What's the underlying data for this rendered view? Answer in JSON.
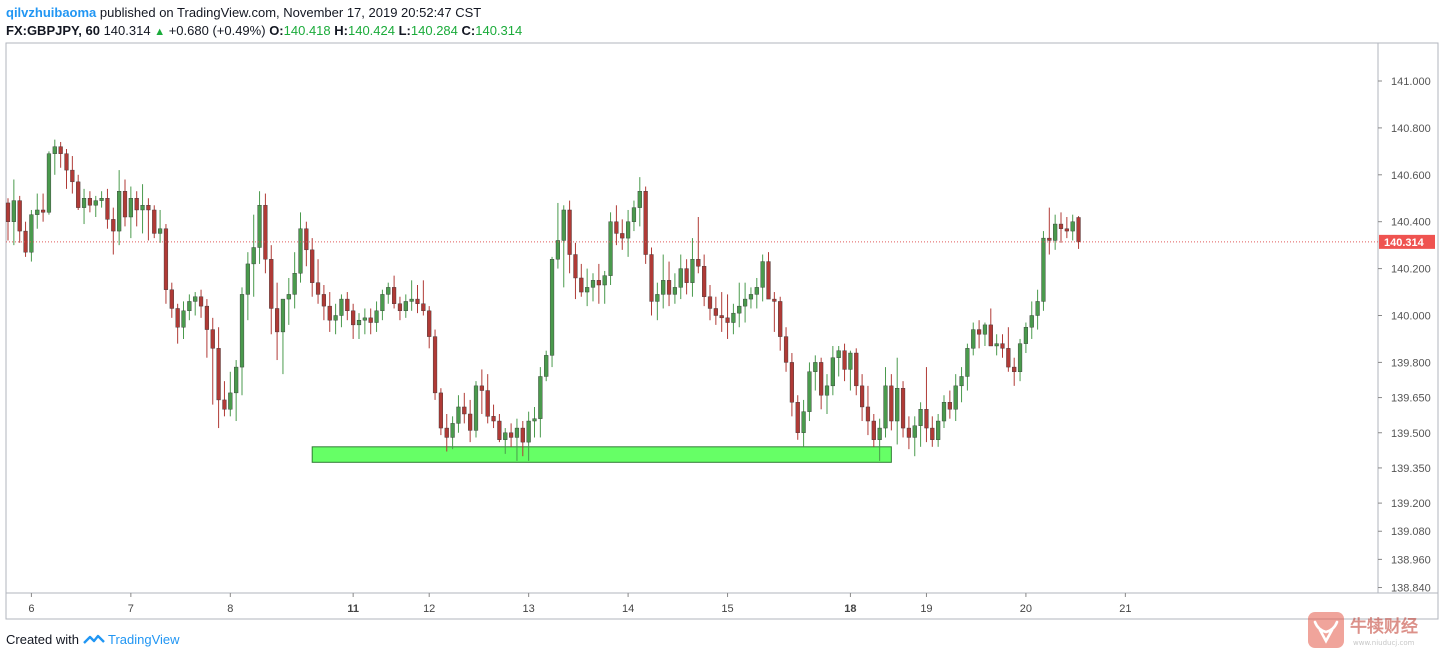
{
  "header": {
    "author": "qilvzhuibaoma",
    "published": "published on TradingView.com, November 17, 2019 20:52:47 CST",
    "symbol": "FX:GBPJPY, 60",
    "last": "140.314",
    "change": "+0.680 (+0.49%)",
    "o_label": "O:",
    "o_value": "140.418",
    "h_label": "H:",
    "h_value": "140.424",
    "l_label": "L:",
    "l_value": "140.284",
    "c_label": "C:",
    "c_value": "140.314"
  },
  "footer": {
    "created_with": "Created with",
    "brand": "TradingView"
  },
  "watermark": {
    "text": "牛犊财经",
    "url": "www.niuducj.com"
  },
  "colors": {
    "up": "#4a9a4d",
    "down": "#b03a36",
    "zone": "#66ff66",
    "price_line": "#e05a5a",
    "price_tag": "#ef5350"
  },
  "chart_data": {
    "type": "candlestick",
    "symbol": "FX:GBPJPY",
    "interval": "60",
    "y_ticks": [
      "141.000",
      "140.800",
      "140.600",
      "140.400",
      "140.200",
      "140.000",
      "139.800",
      "139.650",
      "139.500",
      "139.350",
      "139.200",
      "139.080",
      "138.960",
      "138.840"
    ],
    "x_ticks": [
      {
        "label": "6",
        "i": 4,
        "bold": false
      },
      {
        "label": "7",
        "i": 21,
        "bold": false
      },
      {
        "label": "8",
        "i": 38,
        "bold": false
      },
      {
        "label": "11",
        "i": 59,
        "bold": true
      },
      {
        "label": "12",
        "i": 72,
        "bold": false
      },
      {
        "label": "13",
        "i": 89,
        "bold": false
      },
      {
        "label": "14",
        "i": 106,
        "bold": false
      },
      {
        "label": "15",
        "i": 123,
        "bold": false
      },
      {
        "label": "18",
        "i": 144,
        "bold": true
      },
      {
        "label": "19",
        "i": 157,
        "bold": false
      },
      {
        "label": "20",
        "i": 174,
        "bold": false
      },
      {
        "label": "21",
        "i": 191,
        "bold": false
      }
    ],
    "last_price": 140.314,
    "last_price_label": "140.314",
    "support_zone": {
      "from": 139.374,
      "to": 139.44,
      "start_index": 52,
      "end_index": 151
    },
    "candles": [
      [
        140.48,
        140.5,
        140.32,
        140.4
      ],
      [
        140.4,
        140.58,
        140.3,
        140.49
      ],
      [
        140.49,
        140.51,
        140.31,
        140.36
      ],
      [
        140.36,
        140.4,
        140.25,
        140.27
      ],
      [
        140.27,
        140.45,
        140.23,
        140.43
      ],
      [
        140.43,
        140.52,
        140.37,
        140.45
      ],
      [
        140.45,
        140.52,
        140.4,
        140.44
      ],
      [
        140.44,
        140.7,
        140.43,
        140.69
      ],
      [
        140.69,
        140.75,
        140.6,
        140.72
      ],
      [
        140.72,
        140.74,
        140.63,
        140.69
      ],
      [
        140.69,
        140.71,
        140.54,
        140.62
      ],
      [
        140.62,
        140.68,
        140.52,
        140.57
      ],
      [
        140.57,
        140.6,
        140.45,
        140.46
      ],
      [
        140.46,
        140.54,
        140.39,
        140.5
      ],
      [
        140.5,
        140.53,
        140.44,
        140.47
      ],
      [
        140.47,
        140.51,
        140.42,
        140.49
      ],
      [
        140.49,
        140.53,
        140.46,
        140.5
      ],
      [
        140.5,
        140.54,
        140.37,
        140.41
      ],
      [
        140.41,
        140.46,
        140.26,
        140.36
      ],
      [
        140.36,
        140.62,
        140.3,
        140.53
      ],
      [
        140.53,
        140.58,
        140.38,
        140.42
      ],
      [
        140.42,
        140.55,
        140.33,
        140.5
      ],
      [
        140.5,
        140.53,
        140.38,
        140.45
      ],
      [
        140.45,
        140.56,
        140.35,
        140.47
      ],
      [
        140.47,
        140.5,
        140.32,
        140.45
      ],
      [
        140.45,
        140.47,
        140.33,
        140.35
      ],
      [
        140.35,
        140.45,
        140.31,
        140.37
      ],
      [
        140.37,
        140.39,
        140.05,
        140.11
      ],
      [
        140.11,
        140.14,
        139.99,
        140.03
      ],
      [
        140.03,
        140.05,
        139.88,
        139.95
      ],
      [
        139.95,
        140.06,
        139.9,
        140.02
      ],
      [
        140.02,
        140.09,
        139.98,
        140.06
      ],
      [
        140.06,
        140.1,
        140.0,
        140.08
      ],
      [
        140.08,
        140.11,
        139.99,
        140.04
      ],
      [
        140.04,
        140.07,
        139.82,
        139.94
      ],
      [
        139.94,
        139.99,
        139.62,
        139.86
      ],
      [
        139.86,
        139.95,
        139.52,
        139.64
      ],
      [
        139.64,
        139.72,
        139.57,
        139.6
      ],
      [
        139.6,
        139.76,
        139.57,
        139.67
      ],
      [
        139.67,
        139.81,
        139.55,
        139.78
      ],
      [
        139.78,
        140.12,
        139.66,
        140.09
      ],
      [
        140.09,
        140.27,
        139.98,
        140.22
      ],
      [
        140.22,
        140.43,
        140.08,
        140.29
      ],
      [
        140.29,
        140.53,
        140.22,
        140.47
      ],
      [
        140.47,
        140.52,
        140.18,
        140.24
      ],
      [
        140.24,
        140.3,
        139.92,
        140.03
      ],
      [
        140.03,
        140.14,
        139.81,
        139.93
      ],
      [
        139.93,
        140.07,
        139.75,
        140.07
      ],
      [
        140.07,
        140.16,
        139.96,
        140.09
      ],
      [
        140.09,
        140.27,
        140.03,
        140.18
      ],
      [
        140.18,
        140.44,
        140.14,
        140.37
      ],
      [
        140.37,
        140.4,
        140.21,
        140.28
      ],
      [
        140.28,
        140.33,
        140.08,
        140.14
      ],
      [
        140.14,
        140.24,
        140.05,
        140.09
      ],
      [
        140.09,
        140.13,
        139.98,
        140.04
      ],
      [
        140.04,
        140.1,
        139.93,
        139.98
      ],
      [
        139.98,
        140.05,
        139.92,
        140.0
      ],
      [
        140.0,
        140.09,
        139.95,
        140.07
      ],
      [
        140.07,
        140.1,
        139.98,
        140.02
      ],
      [
        140.02,
        140.05,
        139.9,
        139.96
      ],
      [
        139.96,
        140.01,
        139.9,
        139.98
      ],
      [
        139.98,
        140.03,
        139.92,
        139.99
      ],
      [
        139.99,
        140.03,
        139.92,
        139.97
      ],
      [
        139.97,
        140.06,
        139.93,
        140.02
      ],
      [
        140.02,
        140.11,
        139.98,
        140.09
      ],
      [
        140.09,
        140.14,
        140.05,
        140.12
      ],
      [
        140.12,
        140.17,
        140.03,
        140.05
      ],
      [
        140.05,
        140.08,
        139.98,
        140.02
      ],
      [
        140.02,
        140.09,
        139.99,
        140.06
      ],
      [
        140.06,
        140.15,
        140.02,
        140.07
      ],
      [
        140.07,
        140.13,
        140.01,
        140.05
      ],
      [
        140.05,
        140.15,
        140.0,
        140.02
      ],
      [
        140.02,
        140.04,
        139.86,
        139.91
      ],
      [
        139.91,
        139.94,
        139.64,
        139.67
      ],
      [
        139.67,
        139.69,
        139.49,
        139.52
      ],
      [
        139.52,
        139.58,
        139.42,
        139.48
      ],
      [
        139.48,
        139.57,
        139.43,
        139.54
      ],
      [
        139.54,
        139.66,
        139.5,
        139.61
      ],
      [
        139.61,
        139.67,
        139.54,
        139.58
      ],
      [
        139.58,
        139.64,
        139.46,
        139.51
      ],
      [
        139.51,
        139.72,
        139.48,
        139.7
      ],
      [
        139.7,
        139.77,
        139.58,
        139.68
      ],
      [
        139.68,
        139.75,
        139.54,
        139.57
      ],
      [
        139.57,
        139.62,
        139.52,
        139.55
      ],
      [
        139.55,
        139.58,
        139.46,
        139.47
      ],
      [
        139.47,
        139.52,
        139.41,
        139.5
      ],
      [
        139.5,
        139.54,
        139.44,
        139.48
      ],
      [
        139.48,
        139.56,
        139.38,
        139.52
      ],
      [
        139.52,
        139.55,
        139.4,
        139.46
      ],
      [
        139.46,
        139.59,
        139.38,
        139.55
      ],
      [
        139.55,
        139.61,
        139.48,
        139.56
      ],
      [
        139.56,
        139.78,
        139.48,
        139.74
      ],
      [
        139.74,
        139.85,
        139.72,
        139.83
      ],
      [
        139.83,
        140.25,
        139.78,
        140.24
      ],
      [
        140.24,
        140.48,
        140.2,
        140.32
      ],
      [
        140.32,
        140.47,
        140.12,
        140.45
      ],
      [
        140.45,
        140.49,
        140.18,
        140.26
      ],
      [
        140.26,
        140.31,
        140.07,
        140.16
      ],
      [
        140.16,
        140.22,
        140.08,
        140.1
      ],
      [
        140.1,
        140.2,
        140.04,
        140.12
      ],
      [
        140.12,
        140.18,
        140.06,
        140.15
      ],
      [
        140.15,
        140.22,
        140.05,
        140.13
      ],
      [
        140.13,
        140.19,
        140.05,
        140.17
      ],
      [
        140.17,
        140.44,
        140.13,
        140.4
      ],
      [
        140.4,
        140.47,
        140.3,
        140.35
      ],
      [
        140.35,
        140.41,
        140.28,
        140.33
      ],
      [
        140.33,
        140.45,
        140.25,
        140.4
      ],
      [
        140.4,
        140.49,
        140.36,
        140.46
      ],
      [
        140.46,
        140.59,
        140.38,
        140.53
      ],
      [
        140.53,
        140.55,
        140.22,
        140.26
      ],
      [
        140.26,
        140.29,
        140.0,
        140.06
      ],
      [
        140.06,
        140.14,
        139.98,
        140.09
      ],
      [
        140.09,
        140.26,
        140.03,
        140.15
      ],
      [
        140.15,
        140.23,
        140.04,
        140.09
      ],
      [
        140.09,
        140.18,
        140.05,
        140.12
      ],
      [
        140.12,
        140.26,
        140.07,
        140.2
      ],
      [
        140.2,
        140.24,
        140.09,
        140.14
      ],
      [
        140.14,
        140.33,
        140.08,
        140.24
      ],
      [
        140.24,
        140.42,
        140.18,
        140.21
      ],
      [
        140.21,
        140.26,
        140.04,
        140.08
      ],
      [
        140.08,
        140.13,
        139.98,
        140.03
      ],
      [
        140.03,
        140.08,
        139.96,
        140.0
      ],
      [
        140.0,
        140.1,
        139.93,
        139.99
      ],
      [
        139.99,
        140.09,
        139.9,
        139.97
      ],
      [
        139.97,
        140.05,
        139.92,
        140.01
      ],
      [
        140.01,
        140.14,
        139.95,
        140.04
      ],
      [
        140.04,
        140.14,
        139.97,
        140.07
      ],
      [
        140.07,
        140.12,
        140.03,
        140.09
      ],
      [
        140.09,
        140.16,
        140.03,
        140.12
      ],
      [
        140.12,
        140.26,
        140.06,
        140.23
      ],
      [
        140.23,
        140.27,
        140.08,
        140.07
      ],
      [
        140.07,
        140.1,
        139.93,
        140.06
      ],
      [
        140.06,
        140.08,
        139.85,
        139.91
      ],
      [
        139.91,
        139.95,
        139.76,
        139.8
      ],
      [
        139.8,
        139.84,
        139.57,
        139.63
      ],
      [
        139.63,
        139.66,
        139.47,
        139.5
      ],
      [
        139.5,
        139.64,
        139.44,
        139.59
      ],
      [
        139.59,
        139.8,
        139.55,
        139.76
      ],
      [
        139.76,
        139.83,
        139.68,
        139.8
      ],
      [
        139.8,
        139.82,
        139.6,
        139.66
      ],
      [
        139.66,
        139.75,
        139.58,
        139.7
      ],
      [
        139.7,
        139.87,
        139.66,
        139.82
      ],
      [
        139.82,
        139.87,
        139.74,
        139.85
      ],
      [
        139.85,
        139.88,
        139.72,
        139.77
      ],
      [
        139.77,
        139.85,
        139.68,
        139.84
      ],
      [
        139.84,
        139.86,
        139.66,
        139.7
      ],
      [
        139.7,
        139.75,
        139.55,
        139.61
      ],
      [
        139.61,
        139.7,
        139.49,
        139.55
      ],
      [
        139.55,
        139.58,
        139.44,
        139.47
      ],
      [
        139.47,
        139.56,
        139.38,
        139.52
      ],
      [
        139.52,
        139.78,
        139.48,
        139.7
      ],
      [
        139.7,
        139.75,
        139.51,
        139.55
      ],
      [
        139.55,
        139.82,
        139.45,
        139.69
      ],
      [
        139.69,
        139.72,
        139.48,
        139.52
      ],
      [
        139.52,
        139.57,
        139.43,
        139.48
      ],
      [
        139.48,
        139.57,
        139.4,
        139.53
      ],
      [
        139.53,
        139.63,
        139.44,
        139.6
      ],
      [
        139.6,
        139.78,
        139.46,
        139.52
      ],
      [
        139.52,
        139.57,
        139.44,
        139.47
      ],
      [
        139.47,
        139.58,
        139.44,
        139.55
      ],
      [
        139.55,
        139.66,
        139.52,
        139.63
      ],
      [
        139.63,
        139.68,
        139.56,
        139.6
      ],
      [
        139.6,
        139.75,
        139.55,
        139.7
      ],
      [
        139.7,
        139.78,
        139.63,
        139.74
      ],
      [
        139.74,
        139.88,
        139.68,
        139.86
      ],
      [
        139.86,
        139.97,
        139.83,
        139.94
      ],
      [
        139.94,
        139.98,
        139.86,
        139.92
      ],
      [
        139.92,
        139.97,
        139.87,
        139.96
      ],
      [
        139.96,
        140.03,
        139.88,
        139.87
      ],
      [
        139.87,
        139.92,
        139.83,
        139.88
      ],
      [
        139.88,
        139.92,
        139.82,
        139.86
      ],
      [
        139.86,
        139.95,
        139.76,
        139.78
      ],
      [
        139.78,
        139.82,
        139.7,
        139.76
      ],
      [
        139.76,
        139.9,
        139.72,
        139.88
      ],
      [
        139.88,
        139.97,
        139.84,
        139.95
      ],
      [
        139.95,
        140.06,
        139.9,
        140.0
      ],
      [
        140.0,
        140.11,
        139.94,
        140.06
      ],
      [
        140.06,
        140.36,
        140.02,
        140.33
      ],
      [
        140.33,
        140.46,
        140.26,
        140.32
      ],
      [
        140.32,
        140.43,
        140.28,
        140.39
      ],
      [
        140.39,
        140.44,
        140.31,
        140.37
      ],
      [
        140.37,
        140.42,
        140.33,
        140.36
      ],
      [
        140.36,
        140.43,
        140.32,
        140.4
      ],
      [
        140.418,
        140.424,
        140.284,
        140.314
      ]
    ]
  }
}
